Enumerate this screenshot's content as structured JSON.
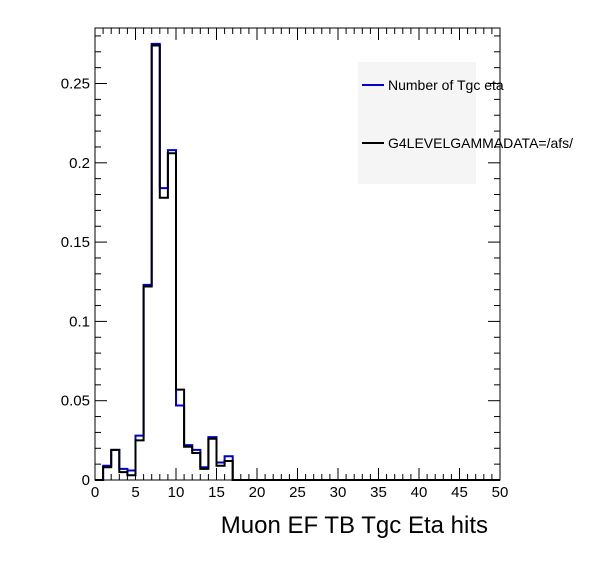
{
  "chart_data": {
    "type": "histogram",
    "title": "",
    "xlabel": "Muon EF TB Tgc Eta hits",
    "ylabel": "",
    "xlim": [
      0,
      50
    ],
    "ylim": [
      0,
      0.285
    ],
    "bin_width": 1,
    "x_ticks": [
      "0",
      "5",
      "10",
      "15",
      "20",
      "25",
      "30",
      "35",
      "40",
      "45",
      "50"
    ],
    "y_ticks": [
      {
        "value": 0,
        "label": "0"
      },
      {
        "value": 0.05,
        "label": "0.05"
      },
      {
        "value": 0.1,
        "label": "0.1"
      },
      {
        "value": 0.15,
        "label": "0.15"
      },
      {
        "value": 0.2,
        "label": "0.2"
      },
      {
        "value": 0.25,
        "label": "0.25"
      }
    ],
    "legend_position": "top-right",
    "series": [
      {
        "name": "Number of Tgc eta",
        "color": "#0000cc",
        "values": [
          0,
          0.009,
          0.019,
          0.007,
          0.006,
          0.028,
          0.123,
          0.275,
          0.184,
          0.208,
          0.047,
          0.022,
          0.019,
          0.008,
          0.027,
          0.011,
          0.015,
          0,
          0,
          0,
          0,
          0,
          0,
          0,
          0,
          0,
          0,
          0,
          0,
          0,
          0,
          0,
          0,
          0,
          0,
          0,
          0,
          0,
          0,
          0,
          0,
          0,
          0,
          0,
          0,
          0,
          0,
          0,
          0,
          0
        ]
      },
      {
        "name": "G4LEVELGAMMADATA=/afs/",
        "color": "#000000",
        "values": [
          0,
          0.008,
          0.019,
          0.005,
          0.003,
          0.025,
          0.122,
          0.274,
          0.178,
          0.206,
          0.057,
          0.021,
          0.017,
          0.007,
          0.026,
          0.009,
          0.012,
          0,
          0,
          0,
          0,
          0,
          0,
          0,
          0,
          0,
          0,
          0,
          0,
          0,
          0,
          0,
          0,
          0,
          0,
          0,
          0,
          0,
          0,
          0,
          0,
          0,
          0,
          0,
          0,
          0,
          0,
          0,
          0,
          0
        ]
      }
    ]
  }
}
